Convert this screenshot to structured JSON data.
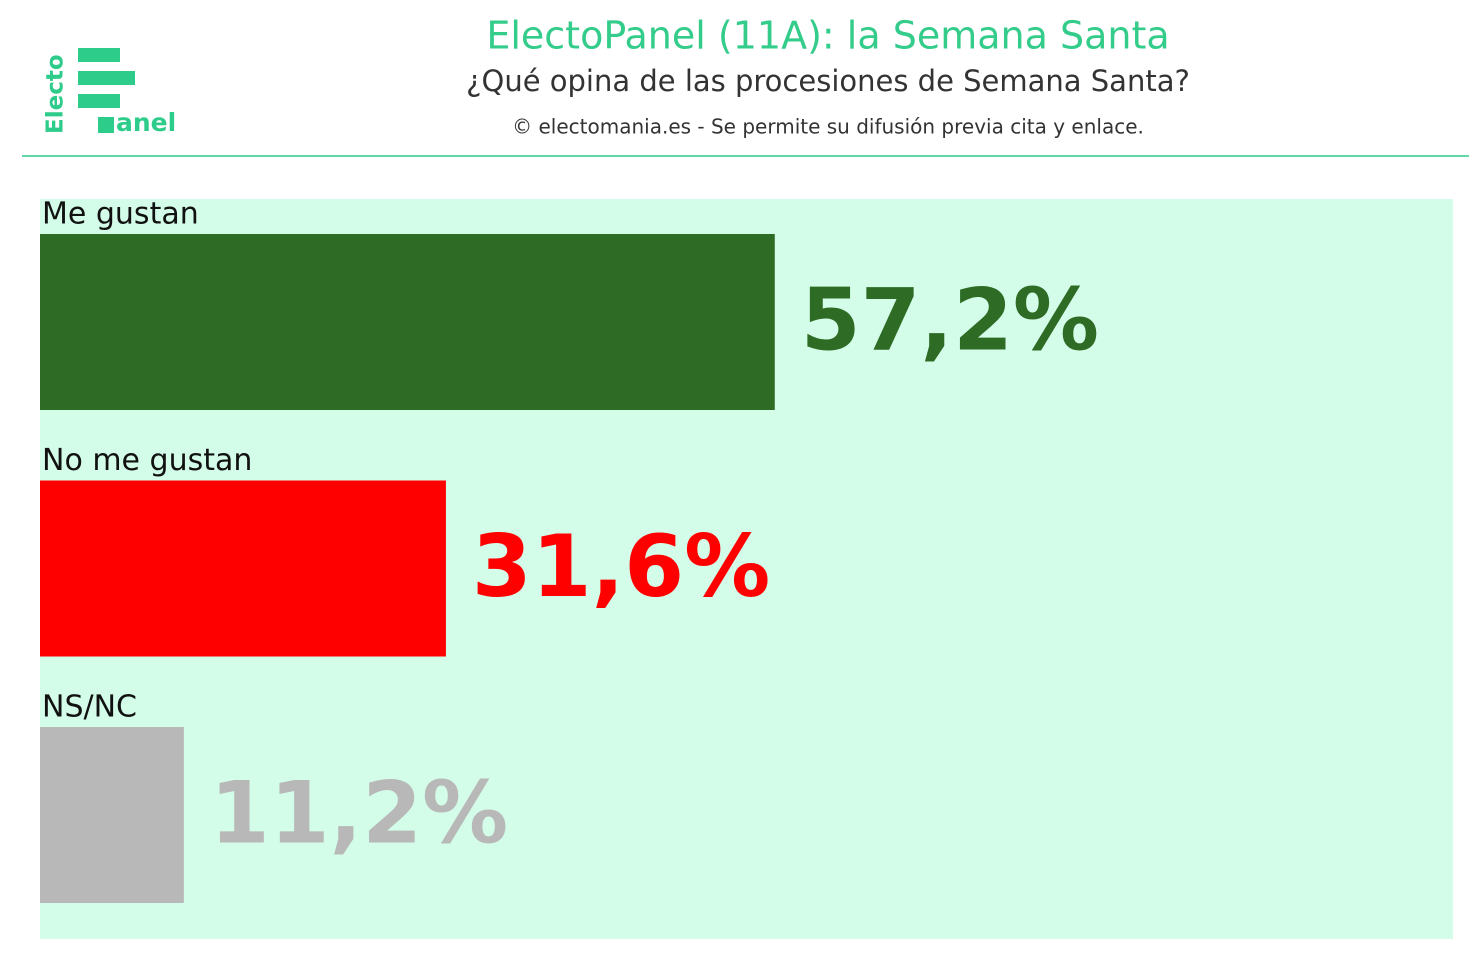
{
  "logo": {
    "vertical": "Electo",
    "horizontal": "anel"
  },
  "chart_data": {
    "type": "hbar",
    "title": "ElectoPanel (11A): la Semana Santa",
    "subtitle": "¿Qué opina de las procesiones de Semana Santa?",
    "credit": "© electomania.es - Se permite su difusión previa cita y enlace.",
    "categories": [
      "Me gustan",
      "No me gustan",
      "NS/NC"
    ],
    "values": [
      57.2,
      31.6,
      11.2
    ],
    "value_labels": [
      "57,2%",
      "31,6%",
      "11,2%"
    ],
    "colors": [
      "#2e6b24",
      "#ff0000",
      "#b8b8b8"
    ],
    "xlim": [
      0,
      110
    ]
  }
}
